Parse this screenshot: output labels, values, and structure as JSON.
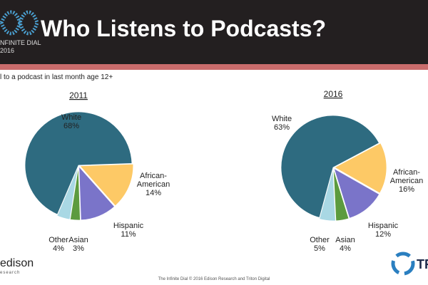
{
  "header": {
    "title": "Who Listens to Podcasts?",
    "logo_line1": "NFINITE DIAL",
    "logo_line2": "2016"
  },
  "subtitle": "l to a podcast in last month age 12+",
  "footer": "The Infinite Dial   © 2016 Edison Research and Triton Digital",
  "edison_logo": {
    "name": "edison",
    "sub": "esearch"
  },
  "triton_logo": "TR",
  "colors": {
    "White": "#2e6b80",
    "African-American": "#fdc966",
    "Hispanic": "#7a74c9",
    "Asian": "#5c9b3e",
    "Other": "#a9d8e4"
  },
  "chart_data": [
    {
      "type": "pie",
      "title": "2011",
      "slices": [
        {
          "label": "African-American",
          "value": 14,
          "text": "14%"
        },
        {
          "label": "Hispanic",
          "value": 11,
          "text": "11%"
        },
        {
          "label": "Asian",
          "value": 3,
          "text": "3%"
        },
        {
          "label": "Other",
          "value": 4,
          "text": "4%"
        },
        {
          "label": "White",
          "value": 68,
          "text": "68%"
        }
      ]
    },
    {
      "type": "pie",
      "title": "2016",
      "slices": [
        {
          "label": "African-American",
          "value": 16,
          "text": "16%"
        },
        {
          "label": "Hispanic",
          "value": 12,
          "text": "12%"
        },
        {
          "label": "Asian",
          "value": 4,
          "text": "4%"
        },
        {
          "label": "Other",
          "value": 5,
          "text": "5%"
        },
        {
          "label": "White",
          "value": 63,
          "text": "63%"
        }
      ]
    }
  ]
}
